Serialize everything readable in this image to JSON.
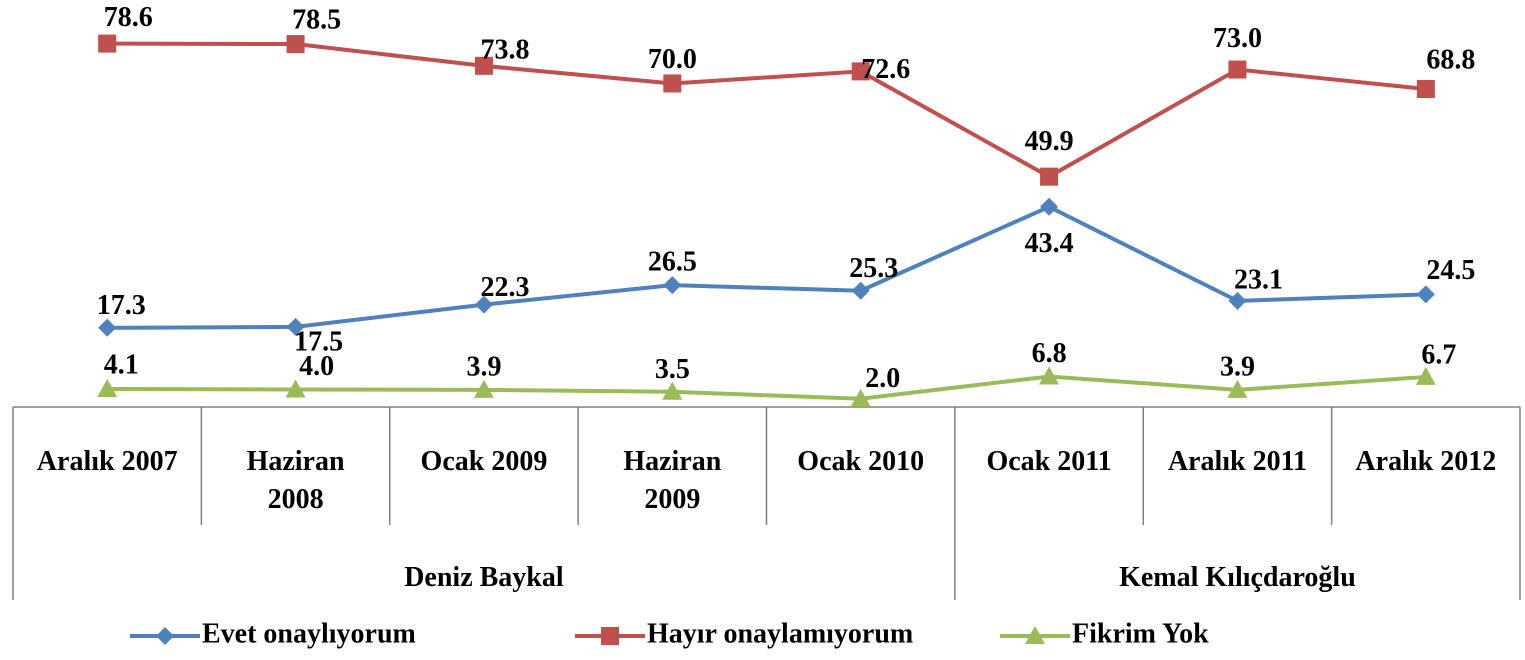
{
  "chart_data": {
    "type": "line",
    "categories": [
      "Aralık 2007",
      "Haziran\n2008",
      "Ocak 2009",
      "Haziran\n2009",
      "Ocak 2010",
      "Ocak 2011",
      "Aralık 2011",
      "Aralık 2012"
    ],
    "groups": [
      {
        "name": "Deniz Baykal",
        "span": 5
      },
      {
        "name": "Kemal Kılıçdaroğlu",
        "span": 3
      }
    ],
    "ylim": [
      0,
      88
    ],
    "series": [
      {
        "name": "Evet onaylıyorum",
        "color": "#4f81bd",
        "marker": "diamond",
        "values": [
          17.3,
          17.5,
          22.3,
          26.5,
          25.3,
          43.4,
          23.1,
          24.5
        ],
        "value_labels": [
          "17.3",
          "17.5",
          "22.3",
          "26.5",
          "25.3",
          "43.4",
          "23.1",
          "24.5"
        ]
      },
      {
        "name": "Hayır onaylamıyorum",
        "color": "#c0504d",
        "marker": "square",
        "values": [
          78.6,
          78.5,
          73.8,
          70.0,
          72.6,
          49.9,
          73.0,
          68.8
        ],
        "value_labels": [
          "78.6",
          "78.5",
          "73.8",
          "70.0",
          "72.6",
          "49.9",
          "73.0",
          "68.8"
        ]
      },
      {
        "name": "Fikrim Yok",
        "color": "#9bbb59",
        "marker": "triangle",
        "values": [
          4.1,
          4.0,
          3.9,
          3.5,
          2.0,
          6.8,
          3.9,
          6.7
        ],
        "value_labels": [
          "4.1",
          "4.0",
          "3.9",
          "3.5",
          "2.0",
          "6.8",
          "3.9",
          "6.7"
        ]
      }
    ]
  }
}
